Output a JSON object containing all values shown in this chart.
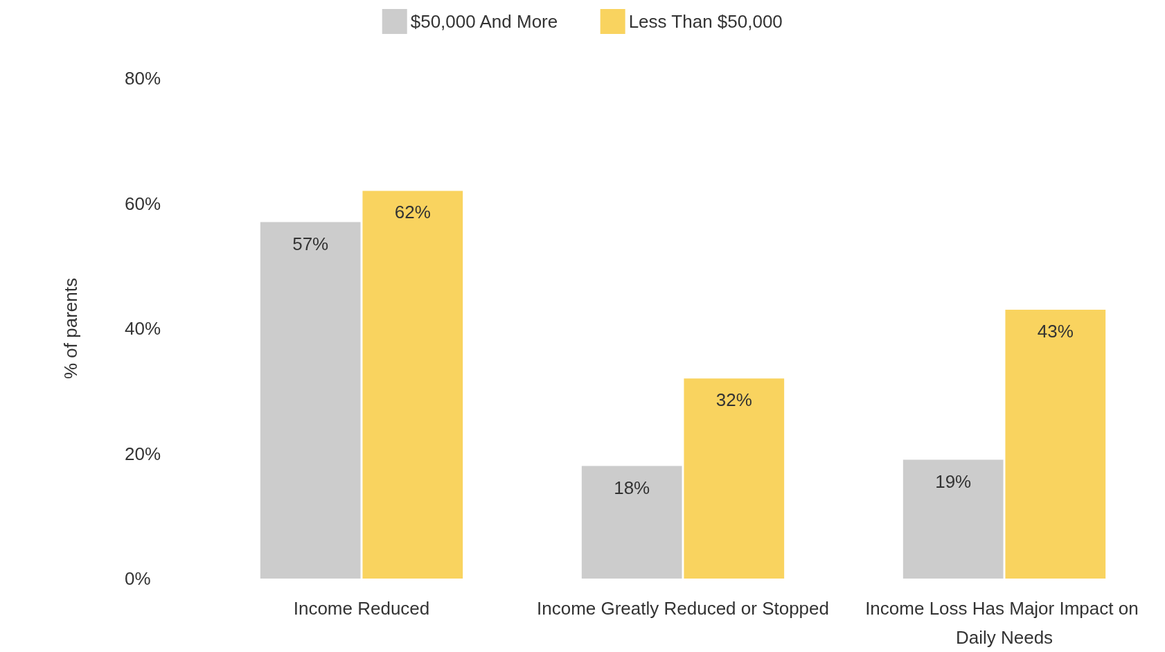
{
  "chart_data": {
    "type": "bar",
    "ylabel": "% of parents",
    "categories": [
      "Income Reduced",
      "Income Greatly Reduced or Stopped",
      "Income Loss Has Major Impact on Daily Needs"
    ],
    "series": [
      {
        "name": "$50,000 And More",
        "color": "#cccccc",
        "values": [
          57,
          18,
          19
        ],
        "value_labels": [
          "57%",
          "18%",
          "19%"
        ]
      },
      {
        "name": "Less Than $50,000",
        "color": "#f9d35f",
        "values": [
          62,
          32,
          43
        ],
        "value_labels": [
          "62%",
          "32%",
          "43%"
        ]
      }
    ],
    "ylim": [
      0,
      80
    ],
    "yticks": [
      {
        "value": 0,
        "label": "0%"
      },
      {
        "value": 20,
        "label": "20%"
      },
      {
        "value": 40,
        "label": "40%"
      },
      {
        "value": 60,
        "label": "60%"
      },
      {
        "value": 80,
        "label": "80%"
      }
    ],
    "grid": false,
    "legend": "top"
  }
}
